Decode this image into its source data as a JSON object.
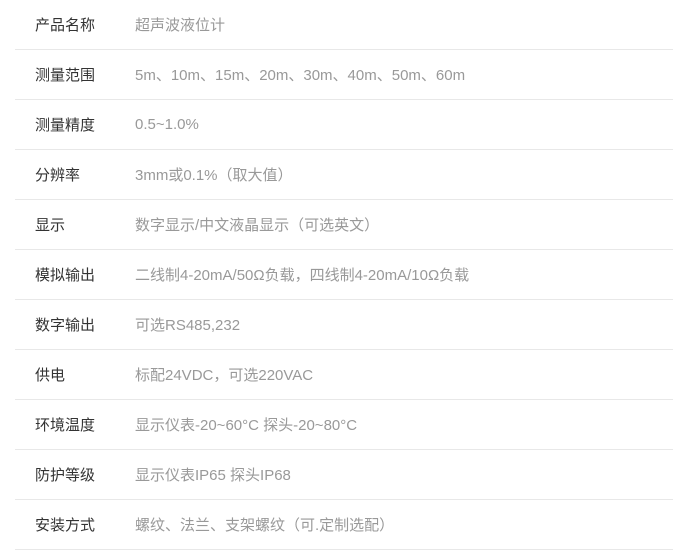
{
  "specs": [
    {
      "label": "产品名称",
      "value": "超声波液位计"
    },
    {
      "label": "测量范围",
      "value": "5m、10m、15m、20m、30m、40m、50m、60m"
    },
    {
      "label": "测量精度",
      "value": "0.5~1.0%"
    },
    {
      "label": "分辨率",
      "value": "3mm或0.1%（取大值）"
    },
    {
      "label": "显示",
      "value": "数字显示/中文液晶显示（可选英文）"
    },
    {
      "label": "模拟输出",
      "value": "二线制4-20mA/50Ω负载，四线制4-20mA/10Ω负载"
    },
    {
      "label": "数字输出",
      "value": "可选RS485,232"
    },
    {
      "label": "供电",
      "value": "标配24VDC，可选220VAC"
    },
    {
      "label": "环境温度",
      "value": "显示仪表-20~60°C  探头-20~80°C"
    },
    {
      "label": "防护等级",
      "value": "显示仪表IP65  探头IP68"
    },
    {
      "label": "安装方式",
      "value": "螺纹、法兰、支架螺纹（可.定制选配）"
    }
  ],
  "styling": {
    "label_color": "#333333",
    "value_color": "#999999",
    "border_color": "#e8e8e8",
    "font_size": 15,
    "label_width": 110,
    "row_padding": 14,
    "background_color": "#ffffff"
  }
}
